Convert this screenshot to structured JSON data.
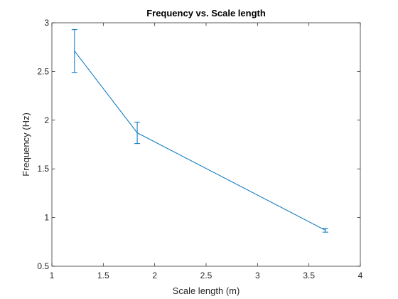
{
  "chart_data": {
    "type": "line",
    "title": "Frequency vs. Scale length",
    "xlabel": "Scale length (m)",
    "ylabel": "Frequency (Hz)",
    "xlim": [
      1,
      4
    ],
    "ylim": [
      0.5,
      3
    ],
    "xticks": [
      1,
      1.5,
      2,
      2.5,
      3,
      3.5,
      4
    ],
    "yticks": [
      0.5,
      1,
      1.5,
      2,
      2.5,
      3
    ],
    "xtick_labels": [
      "1",
      "1.5",
      "2",
      "2.5",
      "3",
      "3.5",
      "4"
    ],
    "ytick_labels": [
      "0.5",
      "1",
      "1.5",
      "2",
      "2.5",
      "3"
    ],
    "grid": false,
    "series": [
      {
        "x": [
          1.22,
          1.83,
          3.66
        ],
        "y": [
          2.71,
          1.87,
          0.87
        ],
        "error": [
          0.22,
          0.11,
          0.02
        ],
        "color": "#0072BD"
      }
    ]
  }
}
